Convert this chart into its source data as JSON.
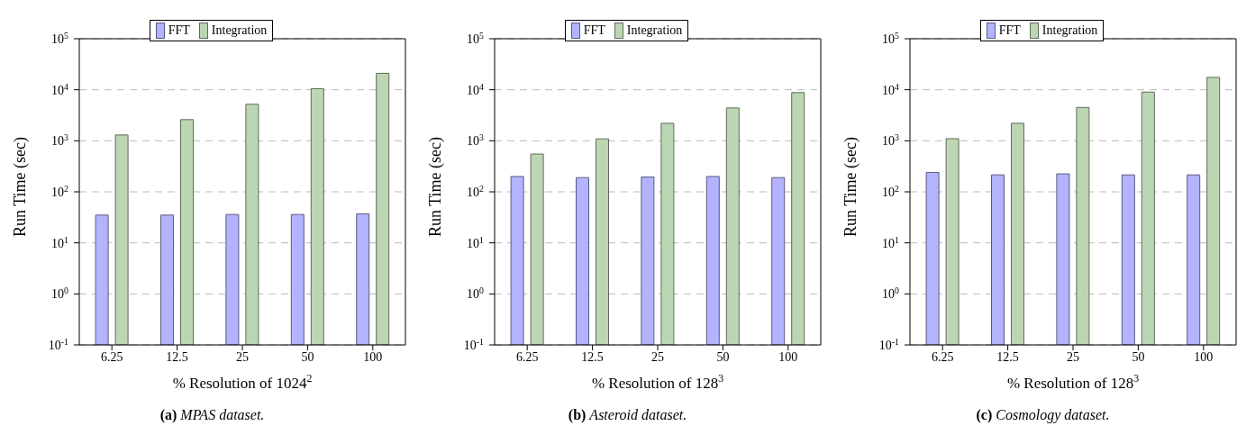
{
  "chart_data": [
    {
      "type": "bar",
      "categories": [
        "6.25",
        "12.5",
        "25",
        "50",
        "100"
      ],
      "xlabel": "% Resolution of 1024$^{2}$",
      "ylabel": "Run Time (sec)",
      "series": [
        {
          "name": "FFT",
          "color": "#b3b3ff",
          "values": [
            35,
            35,
            36,
            36,
            37
          ]
        },
        {
          "name": "Integration",
          "color": "#bcd6b4",
          "values": [
            1300,
            2600,
            5200,
            10500,
            21000
          ]
        }
      ],
      "log": true,
      "ylim": [
        0.1,
        100000
      ],
      "yticks": [
        {
          "value": 0.1,
          "label": "10$^{-1}$"
        },
        {
          "value": 1,
          "label": "10$^{0}$"
        },
        {
          "value": 10,
          "label": "10$^{1}$"
        },
        {
          "value": 100,
          "label": "10$^{2}$"
        },
        {
          "value": 1000,
          "label": "10$^{3}$"
        },
        {
          "value": 10000,
          "label": "10$^{4}$"
        },
        {
          "value": 100000,
          "label": "10$^{5}$"
        }
      ],
      "grid": "y",
      "legend": "top",
      "annotations": [
        "(a) MPAS dataset."
      ]
    },
    {
      "type": "bar",
      "categories": [
        "6.25",
        "12.5",
        "25",
        "50",
        "100"
      ],
      "xlabel": "% Resolution of 128$^{3}$",
      "ylabel": "Run Time (sec)",
      "series": [
        {
          "name": "FFT",
          "color": "#b3b3ff",
          "values": [
            200,
            190,
            195,
            200,
            190
          ]
        },
        {
          "name": "Integration",
          "color": "#bcd6b4",
          "values": [
            550,
            1090,
            2200,
            4400,
            8800
          ]
        }
      ],
      "log": true,
      "ylim": [
        0.1,
        100000
      ],
      "yticks": [
        {
          "value": 0.1,
          "label": "10$^{-1}$"
        },
        {
          "value": 1,
          "label": "10$^{0}$"
        },
        {
          "value": 10,
          "label": "10$^{1}$"
        },
        {
          "value": 100,
          "label": "10$^{2}$"
        },
        {
          "value": 1000,
          "label": "10$^{3}$"
        },
        {
          "value": 10000,
          "label": "10$^{4}$"
        },
        {
          "value": 100000,
          "label": "10$^{5}$"
        }
      ],
      "grid": "y",
      "legend": "top",
      "annotations": [
        "(b) Asteroid dataset."
      ]
    },
    {
      "type": "bar",
      "categories": [
        "6.25",
        "12.5",
        "25",
        "50",
        "100"
      ],
      "xlabel": "% Resolution of 128$^{3}$",
      "ylabel": "Run Time (sec)",
      "series": [
        {
          "name": "FFT",
          "color": "#b3b3ff",
          "values": [
            240,
            215,
            225,
            215,
            215
          ]
        },
        {
          "name": "Integration",
          "color": "#bcd6b4",
          "values": [
            1100,
            2200,
            4500,
            9000,
            17500
          ]
        }
      ],
      "log": true,
      "ylim": [
        0.1,
        100000
      ],
      "yticks": [
        {
          "value": 0.1,
          "label": "10$^{-1}$"
        },
        {
          "value": 1,
          "label": "10$^{0}$"
        },
        {
          "value": 10,
          "label": "10$^{1}$"
        },
        {
          "value": 100,
          "label": "10$^{2}$"
        },
        {
          "value": 1000,
          "label": "10$^{3}$"
        },
        {
          "value": 10000,
          "label": "10$^{4}$"
        },
        {
          "value": 100000,
          "label": "10$^{5}$"
        }
      ],
      "grid": "y",
      "legend": "top",
      "annotations": [
        "(c) Cosmology dataset."
      ]
    }
  ]
}
